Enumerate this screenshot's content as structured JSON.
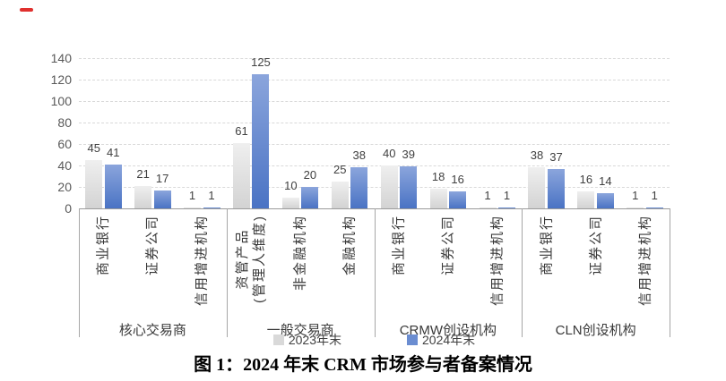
{
  "annotation": {
    "shape": "short-red-dash",
    "color": "#e0302e"
  },
  "chart_data": {
    "type": "bar",
    "title": "图 1：2024 年末 CRM 市场参与者备案情况",
    "ylim": [
      0,
      140
    ],
    "ytick_interval": 20,
    "yticks": [
      0,
      20,
      40,
      60,
      80,
      100,
      120,
      140
    ],
    "grid": "horizontal-dashed",
    "legend_position": "bottom-center",
    "series": [
      {
        "name": "2023年末",
        "swatch": "#d9d9d9"
      },
      {
        "name": "2024年末",
        "swatch": "#6b8dd1"
      }
    ],
    "groups": [
      {
        "label": "核心交易商",
        "items": [
          {
            "label": "商业银行",
            "values": [
              45,
              41
            ]
          },
          {
            "label": "证券公司",
            "values": [
              21,
              17
            ]
          },
          {
            "label": "信用增进机构",
            "values": [
              1,
              1
            ]
          }
        ]
      },
      {
        "label": "一般交易商",
        "items": [
          {
            "label": "资管产品\n(管理人维度)",
            "values": [
              61,
              125
            ]
          },
          {
            "label": "非金融机构",
            "values": [
              10,
              20
            ]
          },
          {
            "label": "金融机构",
            "values": [
              25,
              38
            ]
          }
        ]
      },
      {
        "label": "CRMW创设机构",
        "items": [
          {
            "label": "商业银行",
            "values": [
              40,
              39
            ]
          },
          {
            "label": "证券公司",
            "values": [
              18,
              16
            ]
          },
          {
            "label": "信用增进机构",
            "values": [
              1,
              1
            ]
          }
        ]
      },
      {
        "label": "CLN创设机构",
        "items": [
          {
            "label": "商业银行",
            "values": [
              38,
              37
            ]
          },
          {
            "label": "证券公司",
            "values": [
              16,
              14
            ]
          },
          {
            "label": "信用增进机构",
            "values": [
              1,
              1
            ]
          }
        ]
      }
    ],
    "colors": {
      "bar_2023_top": "#efefef",
      "bar_2023_bottom": "#d3d3d3",
      "bar_2024_top": "#8ba5dc",
      "bar_2024_bottom": "#4a73c4",
      "gridline": "#d9d9d9",
      "axis": "#9b9b9b",
      "text": "#404040"
    }
  }
}
